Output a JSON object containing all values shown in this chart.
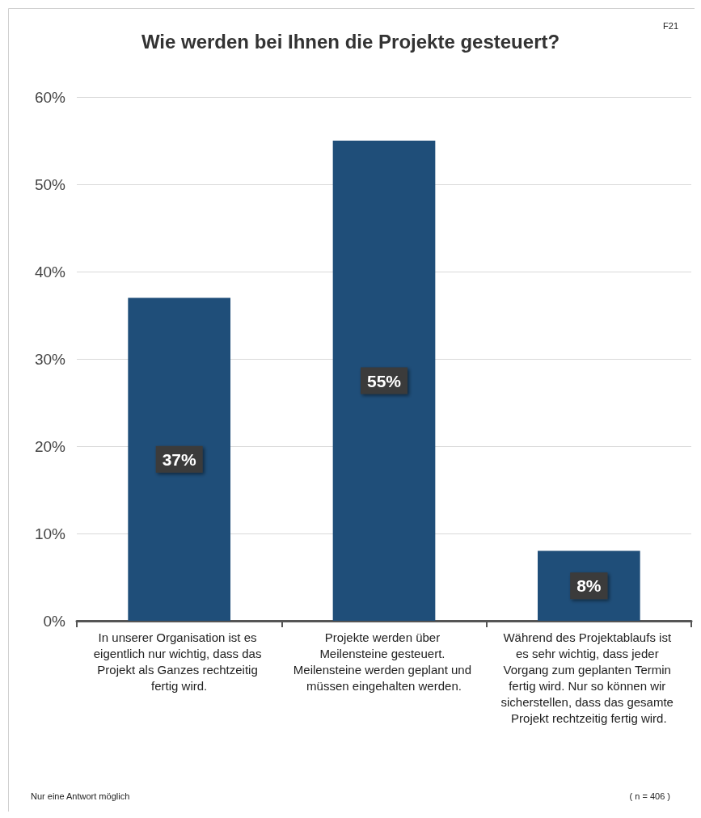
{
  "chart_data": {
    "type": "bar",
    "title": "Wie werden bei Ihnen die Projekte gesteuert?",
    "categories": [
      "In unserer Organisation ist es eigentlich nur wichtig, dass das Projekt als Ganzes rechtzeitig fertig wird.",
      "Projekte werden über Meilensteine gesteuert. Meilensteine werden geplant und müssen eingehalten werden.",
      "Während des Projektablaufs ist es sehr wichtig, dass jeder Vorgang zum geplanten Termin fertig wird. Nur so können wir sicherstellen, dass das gesamte Projekt rechtzeitig fertig wird."
    ],
    "values": [
      37,
      55,
      8
    ],
    "value_labels": [
      "37%",
      "55%",
      "8%"
    ],
    "color": "#1f4e79",
    "ylim": [
      0,
      60
    ],
    "yticks": [
      {
        "value": 0,
        "label": "0%"
      },
      {
        "value": 10,
        "label": "10%"
      },
      {
        "value": 20,
        "label": "20%"
      },
      {
        "value": 30,
        "label": "30%"
      },
      {
        "value": 40,
        "label": "40%"
      },
      {
        "value": 50,
        "label": "50%"
      },
      {
        "value": 60,
        "label": "60%"
      }
    ],
    "grid": "y",
    "annotations": [
      "F21",
      "Nur eine Antwort möglich",
      "( n = 406 )"
    ]
  }
}
